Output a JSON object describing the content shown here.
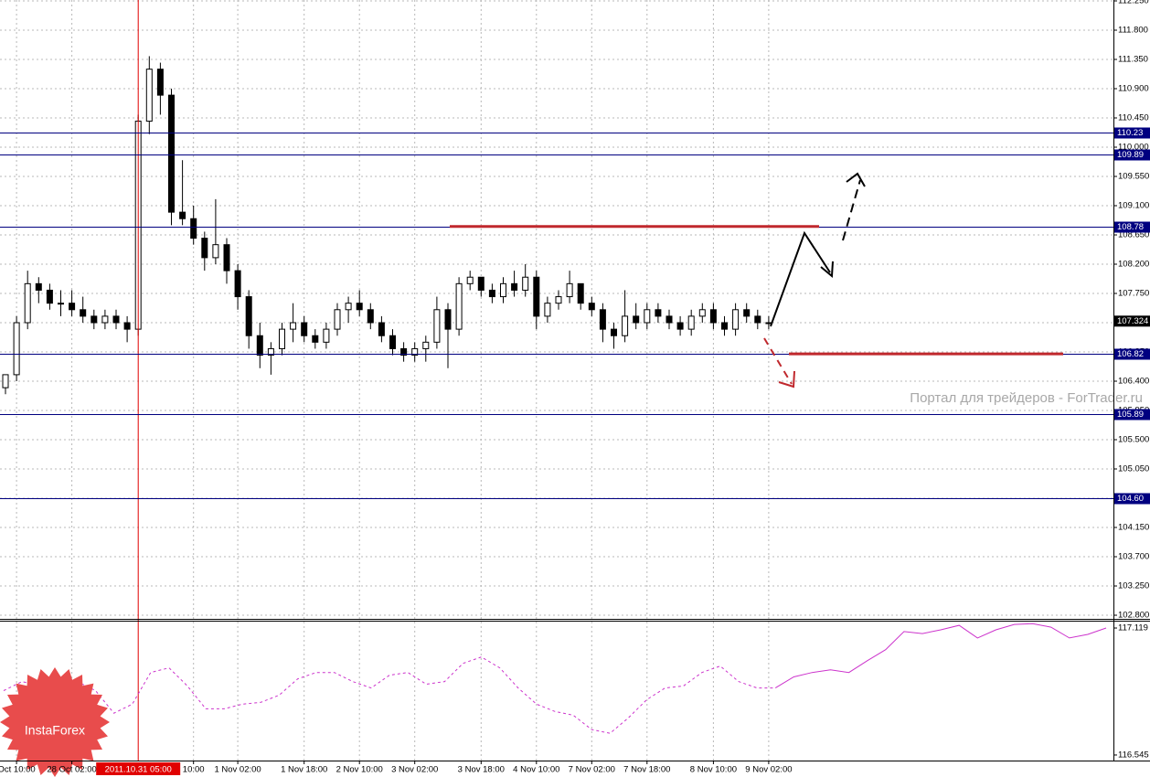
{
  "chart_data": {
    "type": "candlestick",
    "categories": [
      null,
      "Oct 10:00",
      null,
      null,
      null,
      null,
      "28 Oct 02:00",
      null,
      null,
      null,
      null,
      null,
      {
        "label": "2011.10.31 05:00",
        "crosshair": true
      },
      null,
      null,
      null,
      null,
      "10:00",
      null,
      null,
      null,
      "1 Nov 02:00",
      null,
      null,
      null,
      null,
      null,
      "1 Nov 18:00",
      null,
      null,
      null,
      null,
      "2 Nov 10:00",
      null,
      null,
      null,
      null,
      "3 Nov 02:00",
      null,
      null,
      null,
      null,
      null,
      "3 Nov 18:00",
      null,
      null,
      null,
      null,
      "4 Nov 10:00",
      null,
      null,
      null,
      null,
      "7 Nov 02:00",
      null,
      null,
      null,
      null,
      "7 Nov 18:00",
      null,
      null,
      null,
      null,
      null,
      "8 Nov 10:00",
      null,
      null,
      null,
      null,
      "9 Nov 02:00"
    ],
    "open": [
      106.3,
      106.5,
      107.3,
      107.9,
      107.8,
      107.6,
      107.6,
      107.5,
      107.4,
      107.3,
      107.4,
      107.3,
      107.2,
      110.4,
      111.2,
      110.8,
      109.0,
      108.9,
      108.6,
      108.3,
      108.5,
      108.1,
      107.7,
      107.1,
      106.8,
      106.9,
      107.2,
      107.3,
      107.1,
      107.0,
      107.2,
      107.5,
      107.6,
      107.5,
      107.3,
      107.1,
      106.9,
      106.8,
      106.9,
      107.0,
      107.5,
      107.2,
      107.9,
      108.0,
      107.8,
      107.7,
      107.9,
      107.8,
      108.0,
      107.4,
      107.6,
      107.7,
      107.9,
      107.6,
      107.5,
      107.2,
      107.1,
      107.4,
      107.3,
      107.5,
      107.4,
      107.3,
      107.2,
      107.4,
      107.5,
      107.3,
      107.2,
      107.5,
      107.4,
      107.3
    ],
    "high": [
      106.5,
      107.4,
      108.1,
      108.0,
      107.9,
      107.8,
      107.8,
      107.7,
      107.5,
      107.5,
      107.5,
      107.4,
      110.5,
      111.4,
      111.3,
      110.9,
      109.8,
      109.1,
      108.7,
      109.2,
      108.6,
      108.2,
      107.8,
      107.3,
      107.0,
      107.3,
      107.6,
      107.4,
      107.2,
      107.3,
      107.6,
      107.7,
      107.8,
      107.6,
      107.4,
      107.2,
      107.0,
      107.0,
      107.1,
      107.7,
      107.6,
      108.0,
      108.1,
      108.0,
      107.9,
      108.0,
      108.1,
      108.2,
      108.1,
      107.7,
      107.8,
      108.1,
      107.9,
      107.7,
      107.6,
      107.3,
      107.8,
      107.6,
      107.6,
      107.6,
      107.5,
      107.4,
      107.5,
      107.6,
      107.6,
      107.4,
      107.6,
      107.6,
      107.5,
      107.4
    ],
    "low": [
      106.2,
      106.4,
      107.2,
      107.6,
      107.5,
      107.4,
      107.4,
      107.3,
      107.2,
      107.2,
      107.2,
      107.0,
      107.1,
      110.2,
      110.5,
      108.8,
      108.8,
      108.5,
      108.1,
      108.2,
      107.9,
      107.5,
      106.9,
      106.6,
      106.5,
      106.8,
      107.0,
      107.0,
      106.9,
      106.9,
      107.1,
      107.3,
      107.4,
      107.2,
      107.0,
      106.8,
      106.7,
      106.7,
      106.7,
      106.9,
      106.6,
      107.1,
      107.8,
      107.7,
      107.6,
      107.6,
      107.7,
      107.7,
      107.2,
      107.3,
      107.5,
      107.6,
      107.5,
      107.4,
      107.0,
      106.9,
      107.0,
      107.2,
      107.2,
      107.3,
      107.2,
      107.1,
      107.1,
      107.3,
      107.2,
      107.1,
      107.1,
      107.3,
      107.2,
      107.2
    ],
    "close": [
      106.5,
      107.3,
      107.9,
      107.8,
      107.6,
      107.6,
      107.5,
      107.4,
      107.3,
      107.4,
      107.3,
      107.2,
      110.4,
      111.2,
      110.8,
      109.0,
      108.9,
      108.6,
      108.3,
      108.5,
      108.1,
      107.7,
      107.1,
      106.8,
      106.9,
      107.2,
      107.3,
      107.1,
      107.0,
      107.2,
      107.5,
      107.6,
      107.5,
      107.3,
      107.1,
      106.9,
      106.8,
      106.9,
      107.0,
      107.5,
      107.2,
      107.9,
      108.0,
      107.8,
      107.7,
      107.9,
      107.8,
      108.0,
      107.4,
      107.6,
      107.7,
      107.9,
      107.6,
      107.5,
      107.2,
      107.1,
      107.4,
      107.3,
      107.5,
      107.4,
      107.3,
      107.2,
      107.4,
      107.5,
      107.3,
      107.2,
      107.5,
      107.4,
      107.3,
      107.3
    ],
    "up_color": "#ffffff",
    "down_color": "#000000",
    "wick_color": "#000000",
    "ylim": [
      102.744,
      112.264
    ],
    "yticks": [
      {
        "value": 102.8,
        "label": "102.800"
      },
      {
        "value": 103.25,
        "label": "103.250"
      },
      {
        "value": 103.7,
        "label": "103.700"
      },
      {
        "value": 104.15,
        "label": "104.150"
      },
      {
        "value": 104.6,
        "label": "104.600"
      },
      {
        "value": 105.05,
        "label": "105.050"
      },
      {
        "value": 105.5,
        "label": "105.500"
      },
      {
        "value": 105.95,
        "label": "105.950"
      },
      {
        "value": 106.4,
        "label": "106.400"
      },
      {
        "value": 106.85,
        "label": "106.850"
      },
      {
        "value": 107.3,
        "label": "107.300"
      },
      {
        "value": 107.75,
        "label": "107.750"
      },
      {
        "value": 108.2,
        "label": "108.200"
      },
      {
        "value": 108.65,
        "label": "108.650"
      },
      {
        "value": 109.1,
        "label": "109.100"
      },
      {
        "value": 109.55,
        "label": "109.550"
      },
      {
        "value": 110.0,
        "label": "110.000"
      },
      {
        "value": 110.45,
        "label": "110.450"
      },
      {
        "value": 110.9,
        "label": "110.900"
      },
      {
        "value": 111.35,
        "label": "111.350"
      },
      {
        "value": 111.8,
        "label": "111.800"
      },
      {
        "value": 112.25,
        "label": "112.250"
      }
    ],
    "grid": true,
    "levels": [
      110.23,
      109.89,
      108.78,
      106.82,
      105.89,
      {
        "value": 104.6,
        "label": "104.60"
      }
    ],
    "level_color": "#000080",
    "target_color": "#c0282d",
    "last_price": 107.324,
    "indicator": {
      "type": "line",
      "color": "#cc33cc",
      "ylim": [
        116.52,
        117.148
      ],
      "yticks": [
        116.545,
        117.119
      ],
      "series": [
        {
          "style": "dashed",
          "values": [
            116.836,
            116.877,
            116.857,
            116.816,
            116.877,
            116.836,
            116.734,
            116.775,
            116.918,
            116.939,
            116.857,
            116.754,
            116.754,
            116.775,
            116.783,
            116.816,
            116.889,
            116.918,
            116.918,
            116.877,
            116.848,
            116.906,
            116.918,
            116.865,
            116.877,
            116.959,
            116.988,
            116.939,
            116.848,
            116.775,
            116.742,
            116.725,
            116.66,
            116.643,
            116.713,
            116.795,
            116.848,
            116.857,
            116.918,
            116.947,
            116.877,
            116.848,
            116.848,
            null,
            null,
            null,
            null,
            null,
            null,
            null,
            null,
            null,
            null,
            null,
            null,
            null,
            null,
            null,
            null,
            null,
            null
          ]
        },
        {
          "style": "solid",
          "values": [
            null,
            null,
            null,
            null,
            null,
            null,
            null,
            null,
            null,
            null,
            null,
            null,
            null,
            null,
            null,
            null,
            null,
            null,
            null,
            null,
            null,
            null,
            null,
            null,
            null,
            null,
            null,
            null,
            null,
            null,
            null,
            null,
            null,
            null,
            null,
            null,
            null,
            null,
            null,
            null,
            null,
            null,
            116.848,
            116.898,
            116.918,
            116.93,
            116.918,
            116.971,
            117.021,
            117.103,
            117.094,
            117.111,
            117.131,
            117.074,
            117.111,
            117.135,
            117.139,
            117.123,
            117.074,
            117.09,
            117.119
          ]
        }
      ]
    }
  },
  "watermark": "Портал для трейдеров - ForTrader.ru",
  "logo": "InstaForex"
}
